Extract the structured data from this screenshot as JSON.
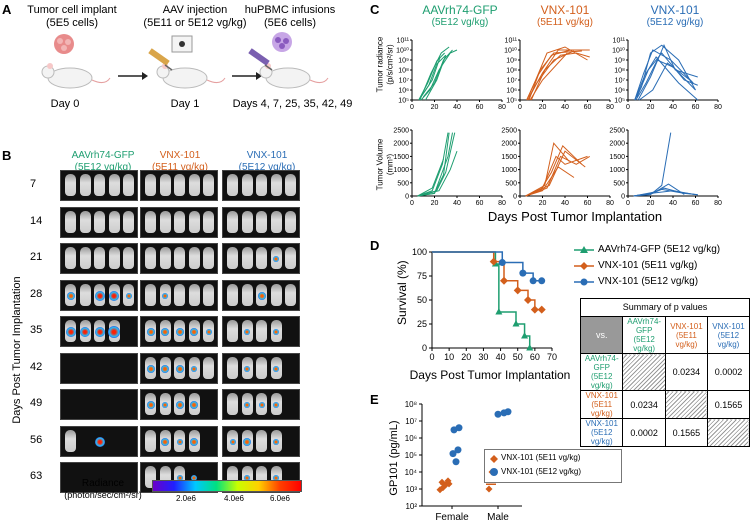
{
  "panels": {
    "A": "A",
    "B": "B",
    "C": "C",
    "D": "D",
    "E": "E"
  },
  "colors": {
    "green": "#1e9e70",
    "orange": "#d35f1c",
    "blue": "#2a6db5"
  },
  "panelA": {
    "steps": [
      {
        "title": "Tumor cell implant",
        "sub": "(5E5 cells)",
        "day": "Day 0"
      },
      {
        "title": "AAV injection",
        "sub": "(5E11 or 5E12 vg/kg)",
        "day": "Day 1"
      },
      {
        "title": "huPBMC infusions",
        "sub": "(5E6 cells)",
        "day": "Days 4, 7, 25, 35, 42, 49"
      }
    ]
  },
  "panelB": {
    "groups": [
      {
        "name": "AAVrh74-GFP",
        "dose": "(5E12 vg/kg)"
      },
      {
        "name": "VNX-101",
        "dose": "(5E11 vg/kg)"
      },
      {
        "name": "VNX-101",
        "dose": "(5E12 vg/kg)"
      }
    ],
    "days": [
      "7",
      "14",
      "21",
      "28",
      "35",
      "42",
      "49",
      "56",
      "63"
    ],
    "ylabel": "Days Post Tumor Implantation",
    "colorbar": {
      "label1": "Radiance",
      "label2": "(photon/sec/cm²/sr)",
      "ticks": [
        "2.0e6",
        "4.0e6",
        "6.0e6"
      ]
    }
  },
  "panelC": {
    "groups": [
      {
        "name": "AAVrh74-GFP",
        "dose": "(5E12 vg/kg)"
      },
      {
        "name": "VNX-101",
        "dose": "(5E11 vg/kg)"
      },
      {
        "name": "VNX-101",
        "dose": "(5E12 vg/kg)"
      }
    ],
    "radiance_ylabel1": "Tumor radiance",
    "radiance_ylabel2": "(p/s/cm²/sr)",
    "radiance_ticks": [
      "10⁵",
      "10⁶",
      "10⁷",
      "10⁸",
      "10⁹",
      "10¹⁰",
      "10¹¹"
    ],
    "volume_ylabel1": "Tumor Volume",
    "volume_ylabel2": "(mm³)",
    "volume_ticks": [
      "0",
      "500",
      "1000",
      "1500",
      "2000",
      "2500"
    ],
    "x_ticks": [
      "0",
      "20",
      "40",
      "60",
      "80"
    ],
    "xlabel": "Days Post Tumor Implantation"
  },
  "chart_data": [
    {
      "type": "line",
      "title": "Survival",
      "xlabel": "Days Post Tumor Implantation",
      "ylabel": "Survival (%)",
      "xlim": [
        0,
        70
      ],
      "ylim": [
        0,
        100
      ],
      "x_ticks": [
        "0",
        "10",
        "20",
        "30",
        "40",
        "50",
        "60",
        "70"
      ],
      "y_ticks": [
        "0",
        "25",
        "50",
        "75",
        "100"
      ],
      "series": [
        {
          "name": "AAVrh74-GFP (5E12 vg/kg)",
          "color": "#1e9e70",
          "steps": [
            [
              0,
              100
            ],
            [
              37,
              100
            ],
            [
              37,
              87.5
            ],
            [
              39,
              87.5
            ],
            [
              39,
              37.5
            ],
            [
              49,
              37.5
            ],
            [
              49,
              25
            ],
            [
              54,
              25
            ],
            [
              54,
              12.5
            ],
            [
              57,
              12.5
            ],
            [
              57,
              0
            ]
          ],
          "markers": [
            [
              37,
              87.5
            ],
            [
              39,
              37.5
            ],
            [
              49,
              25
            ],
            [
              54,
              12.5
            ],
            [
              57,
              0
            ]
          ]
        },
        {
          "name": "VNX-101 (5E11 vg/kg)",
          "color": "#d35f1c",
          "steps": [
            [
              0,
              100
            ],
            [
              36,
              100
            ],
            [
              36,
              90
            ],
            [
              42,
              90
            ],
            [
              42,
              70
            ],
            [
              50,
              70
            ],
            [
              50,
              60
            ],
            [
              56,
              60
            ],
            [
              56,
              50
            ],
            [
              60,
              50
            ],
            [
              60,
              40
            ],
            [
              64,
              40
            ]
          ],
          "markers": [
            [
              36,
              90
            ],
            [
              42,
              70
            ],
            [
              50,
              60
            ],
            [
              56,
              50
            ],
            [
              60,
              40
            ],
            [
              64,
              40
            ]
          ]
        },
        {
          "name": "VNX-101 (5E12 vg/kg)",
          "color": "#2a6db5",
          "steps": [
            [
              0,
              100
            ],
            [
              41,
              100
            ],
            [
              41,
              89
            ],
            [
              53,
              89
            ],
            [
              53,
              78
            ],
            [
              59,
              78
            ],
            [
              59,
              70
            ],
            [
              64,
              70
            ]
          ],
          "markers": [
            [
              41,
              89
            ],
            [
              53,
              78
            ],
            [
              59,
              70
            ],
            [
              64,
              70
            ]
          ]
        }
      ]
    },
    {
      "type": "scatter",
      "title": "GP101",
      "ylabel": "GP101 (pg/mL)",
      "categories": [
        "Female",
        "Male"
      ],
      "y_scale": "log",
      "ylim": [
        100,
        100000000
      ],
      "y_ticks": [
        "10²",
        "10³",
        "10⁴",
        "10⁵",
        "10⁶",
        "10⁷",
        "10⁸"
      ],
      "series": [
        {
          "name": "VNX-101 (5E11 vg/kg)",
          "color": "#d35f1c",
          "points": [
            [
              "Female",
              900
            ],
            [
              "Female",
              1200
            ],
            [
              "Female",
              1800
            ],
            [
              "Female",
              2000
            ],
            [
              "Female",
              2500
            ],
            [
              "Female",
              3000
            ],
            [
              "Male",
              1000
            ],
            [
              "Male",
              10000
            ]
          ],
          "median": {
            "Female": 2000,
            "Male": 1900
          }
        },
        {
          "name": "VNX-101 (5E12 vg/kg)",
          "color": "#2a6db5",
          "points": [
            [
              "Female",
              40000
            ],
            [
              "Female",
              120000
            ],
            [
              "Female",
              200000
            ],
            [
              "Female",
              3000000
            ],
            [
              "Female",
              4000000
            ],
            [
              "Male",
              25000000
            ],
            [
              "Male",
              30000000
            ],
            [
              "Male",
              35000000
            ]
          ]
        }
      ]
    }
  ],
  "pvalues": {
    "title": "Summary of p values",
    "corner": "vs.",
    "headers": [
      [
        "AAVrh74-GFP",
        "(5E12 vg/kg)"
      ],
      [
        "VNX-101",
        "(5E11 vg/kg)"
      ],
      [
        "VNX-101",
        "(5E12 vg/kg)"
      ]
    ],
    "rows": [
      {
        "label": [
          "AAVrh74-GFP",
          "(5E12 vg/kg)"
        ],
        "cells": [
          "",
          "0.0234",
          "0.0002"
        ]
      },
      {
        "label": [
          "VNX-101",
          "(5E11 vg/kg)"
        ],
        "cells": [
          "0.0234",
          "",
          "0.1565"
        ]
      },
      {
        "label": [
          "VNX-101",
          "(5E12 vg/kg)"
        ],
        "cells": [
          "0.0002",
          "0.1565",
          ""
        ]
      }
    ]
  }
}
